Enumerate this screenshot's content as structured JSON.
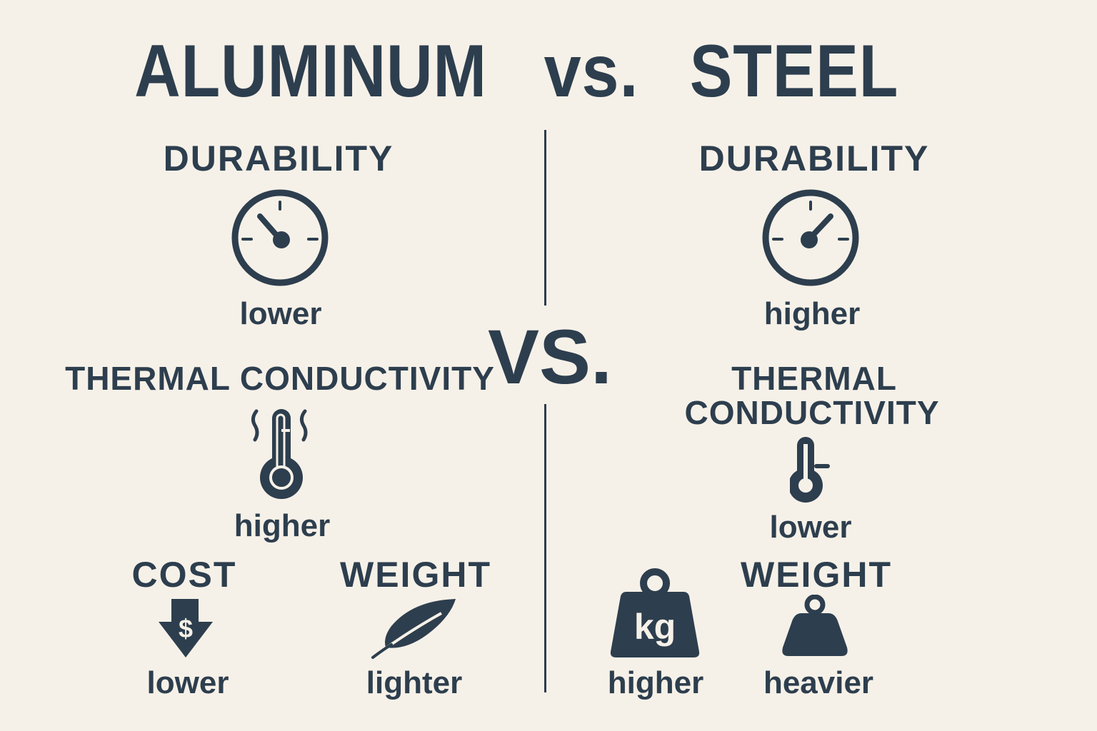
{
  "title": {
    "left": "ALUMINUM",
    "vs": "vs.",
    "right": "STEEL"
  },
  "center_vs": "VS.",
  "colors": {
    "background": "#f6f1e8",
    "ink": "#2d3e4e"
  },
  "aluminum": {
    "durability": {
      "label": "DURABILITY",
      "value": "lower",
      "icon": "gauge-icon"
    },
    "thermal": {
      "label": "THERMAL CONDUCTIVITY",
      "value": "higher",
      "icon": "thermometer-heat-icon"
    },
    "cost": {
      "label": "COST",
      "value": "lower",
      "icon": "dollar-down-arrow-icon"
    },
    "weight": {
      "label": "WEIGHT",
      "value": "lighter",
      "icon": "feather-icon"
    }
  },
  "steel": {
    "durability": {
      "label": "DURABILITY",
      "value": "higher",
      "icon": "gauge-icon"
    },
    "thermal": {
      "label_line1": "THERMAL",
      "label_line2": "CONDUCTIVITY",
      "value": "lower",
      "icon": "thermometer-icon"
    },
    "cost": {
      "value": "higher",
      "icon": "kg-weight-icon",
      "icon_text": "kg"
    },
    "weight": {
      "label": "WEIGHT",
      "value": "heavier",
      "icon": "weight-icon"
    }
  }
}
